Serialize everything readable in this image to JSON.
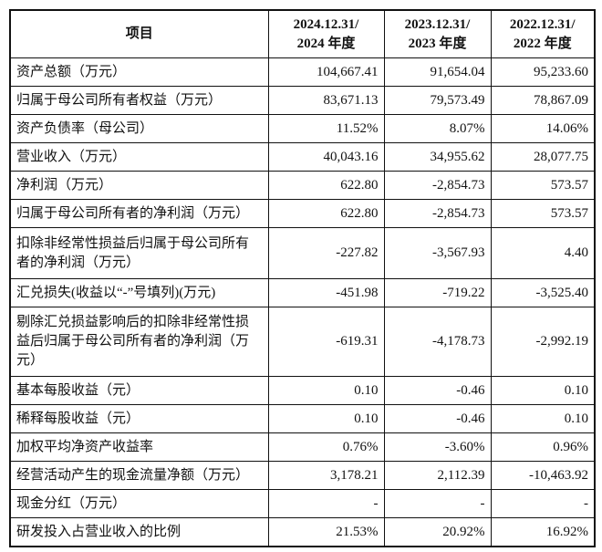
{
  "header": {
    "item": "项目",
    "cols": [
      [
        "2024.12.31/",
        "2024 年度"
      ],
      [
        "2023.12.31/",
        "2023 年度"
      ],
      [
        "2022.12.31/",
        "2022 年度"
      ]
    ]
  },
  "rows": [
    {
      "label": "资产总额（万元）",
      "values": [
        "104,667.41",
        "91,654.04",
        "95,233.60"
      ]
    },
    {
      "label": "归属于母公司所有者权益（万元）",
      "values": [
        "83,671.13",
        "79,573.49",
        "78,867.09"
      ]
    },
    {
      "label": "资产负债率（母公司）",
      "values": [
        "11.52%",
        "8.07%",
        "14.06%"
      ]
    },
    {
      "label": "营业收入（万元）",
      "values": [
        "40,043.16",
        "34,955.62",
        "28,077.75"
      ]
    },
    {
      "label": "净利润（万元）",
      "values": [
        "622.80",
        "-2,854.73",
        "573.57"
      ]
    },
    {
      "label": "归属于母公司所有者的净利润（万元）",
      "values": [
        "622.80",
        "-2,854.73",
        "573.57"
      ]
    },
    {
      "label": "扣除非经常性损益后归属于母公司所有者的净利润（万元）",
      "values": [
        "-227.82",
        "-3,567.93",
        "4.40"
      ]
    },
    {
      "label": "汇兑损失(收益以“-”号填列)(万元)",
      "values": [
        "-451.98",
        "-719.22",
        "-3,525.40"
      ]
    },
    {
      "label": "剔除汇兑损益影响后的扣除非经常性损益后归属于母公司所有者的净利润（万元）",
      "values": [
        "-619.31",
        "-4,178.73",
        "-2,992.19"
      ]
    },
    {
      "label": "基本每股收益（元）",
      "values": [
        "0.10",
        "-0.46",
        "0.10"
      ]
    },
    {
      "label": "稀释每股收益（元）",
      "values": [
        "0.10",
        "-0.46",
        "0.10"
      ]
    },
    {
      "label": "加权平均净资产收益率",
      "values": [
        "0.76%",
        "-3.60%",
        "0.96%"
      ]
    },
    {
      "label": "经营活动产生的现金流量净额（万元）",
      "values": [
        "3,178.21",
        "2,112.39",
        "-10,463.92"
      ]
    },
    {
      "label": "现金分红（万元）",
      "values": [
        "-",
        "-",
        "-"
      ]
    },
    {
      "label": "研发投入占营业收入的比例",
      "values": [
        "21.53%",
        "20.92%",
        "16.92%"
      ]
    }
  ]
}
